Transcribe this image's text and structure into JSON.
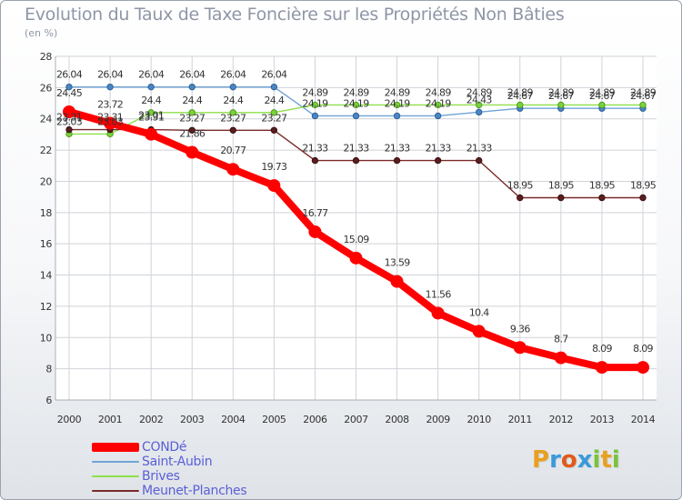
{
  "title": "Evolution du Taux de Taxe Foncière sur les Propriétés Non Bâties",
  "unit_label": "(en %)",
  "logo_text": "Proxiti",
  "chart_data": {
    "type": "line",
    "title": "Evolution du Taux de Taxe Foncière sur les Propriétés Non Bâties",
    "ylabel": "(en %)",
    "ylim": [
      6,
      28
    ],
    "yticks": [
      6,
      8,
      10,
      12,
      14,
      16,
      18,
      20,
      22,
      24,
      26,
      28
    ],
    "x": [
      "2000",
      "2001",
      "2002",
      "2003",
      "2004",
      "2005",
      "2006",
      "2007",
      "2008",
      "2009",
      "2010",
      "2011",
      "2012",
      "2013",
      "2014"
    ],
    "grid": true,
    "legend_position": "bottom-left",
    "series": [
      {
        "name": "CONDé",
        "color": "#ff0000",
        "values": [
          24.45,
          23.72,
          23.01,
          21.86,
          20.77,
          19.73,
          16.77,
          15.09,
          13.59,
          11.56,
          10.4,
          9.36,
          8.7,
          8.09,
          8.09
        ]
      },
      {
        "name": "Saint-Aubin",
        "color": "#5b9bd5",
        "values": [
          26.04,
          26.04,
          26.04,
          26.04,
          26.04,
          26.04,
          24.19,
          24.19,
          24.19,
          24.19,
          24.43,
          24.67,
          24.67,
          24.67,
          24.67
        ]
      },
      {
        "name": "Brives",
        "color": "#88dd44",
        "values": [
          23.03,
          23.03,
          24.4,
          24.4,
          24.4,
          24.4,
          24.89,
          24.89,
          24.89,
          24.89,
          24.89,
          24.89,
          24.89,
          24.89,
          24.89
        ]
      },
      {
        "name": "Meunet-Planches",
        "color": "#7a2a2a",
        "values": [
          23.31,
          23.31,
          23.31,
          23.27,
          23.27,
          23.27,
          21.33,
          21.33,
          21.33,
          21.33,
          21.33,
          18.95,
          18.95,
          18.95,
          18.95
        ]
      }
    ]
  }
}
